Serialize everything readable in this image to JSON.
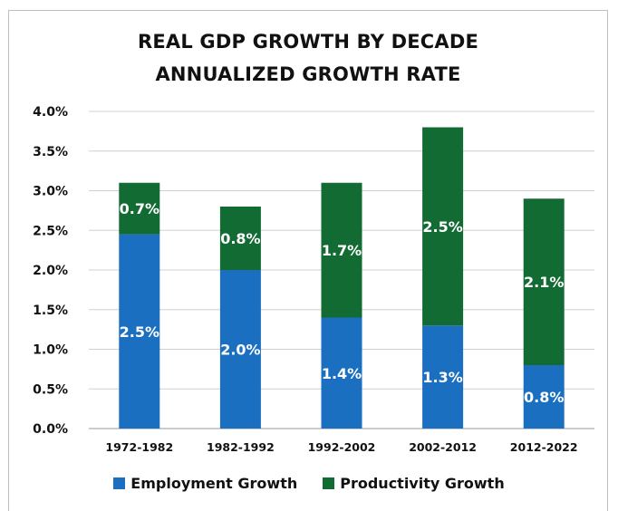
{
  "chart_data": {
    "type": "bar",
    "stacked": true,
    "title": "REAL GDP GROWTH BY DECADE",
    "subtitle": "ANNUALIZED GROWTH RATE",
    "categories": [
      "1972-1982",
      "1982-1992",
      "1992-2002",
      "2002-2012",
      "2012-2022"
    ],
    "series": [
      {
        "name": "Employment Growth",
        "color": "#1a6fc0",
        "values": [
          2.45,
          2.0,
          1.4,
          1.3,
          0.8
        ],
        "labels": [
          "2.5%",
          "2.0%",
          "1.4%",
          "1.3%",
          "0.8%"
        ]
      },
      {
        "name": "Productivity Growth",
        "color": "#126b33",
        "values": [
          0.65,
          0.8,
          1.7,
          2.5,
          2.1
        ],
        "labels": [
          "0.7%",
          "0.8%",
          "1.7%",
          "2.5%",
          "2.1%"
        ]
      }
    ],
    "yticks": [
      "0.0%",
      "0.5%",
      "1.0%",
      "1.5%",
      "2.0%",
      "2.5%",
      "3.0%",
      "3.5%",
      "4.0%"
    ],
    "ylim": [
      0,
      4.0
    ],
    "grid": true,
    "legend": "bottom"
  }
}
